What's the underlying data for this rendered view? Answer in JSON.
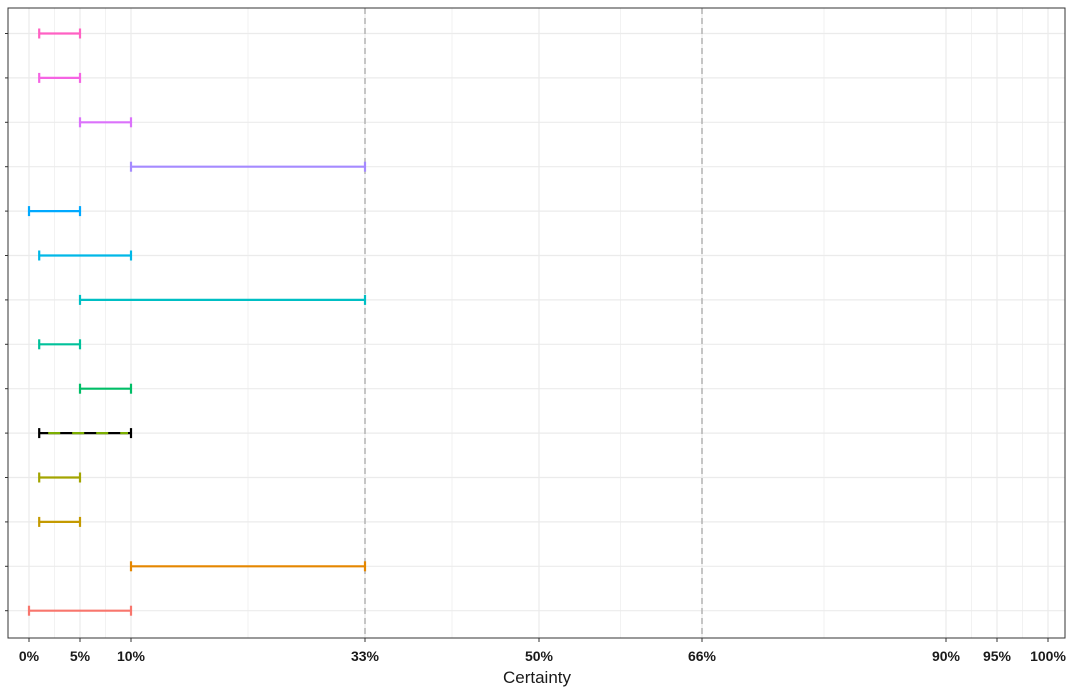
{
  "chart_data": {
    "type": "errorbar",
    "title": "",
    "xlabel": "Certainty",
    "ylabel": "",
    "xlim": [
      -1,
      101
    ],
    "x_ticks": [
      {
        "value": 0,
        "label": "0%"
      },
      {
        "value": 5,
        "label": "5%"
      },
      {
        "value": 10,
        "label": "10%"
      },
      {
        "value": 33,
        "label": "33%"
      },
      {
        "value": 50,
        "label": "50%"
      },
      {
        "value": 66,
        "label": "66%"
      },
      {
        "value": 90,
        "label": "90%"
      },
      {
        "value": 95,
        "label": "95%"
      },
      {
        "value": 100,
        "label": "100%"
      }
    ],
    "minor_gridlines": [
      2.5,
      7.5,
      21.5,
      41.5,
      58,
      78,
      92.5,
      97.5
    ],
    "reference_lines": [
      {
        "value": 33,
        "style": "dashed",
        "color": "#b3b3b3"
      },
      {
        "value": 66,
        "style": "dashed",
        "color": "#b3b3b3"
      }
    ],
    "grid": true,
    "legend": "none",
    "rows": [
      {
        "low": 1,
        "high": 5,
        "color": "#FF61C3"
      },
      {
        "low": 1,
        "high": 5,
        "color": "#F564E3"
      },
      {
        "low": 5,
        "high": 10,
        "color": "#DB72FB"
      },
      {
        "low": 10,
        "high": 33,
        "color": "#A58AFF"
      },
      {
        "low": 0,
        "high": 5,
        "color": "#00A9FF"
      },
      {
        "low": 1,
        "high": 10,
        "color": "#00B8E7"
      },
      {
        "low": 5,
        "high": 33,
        "color": "#00BFC4"
      },
      {
        "low": 1,
        "high": 5,
        "color": "#00C19A"
      },
      {
        "low": 5,
        "high": 10,
        "color": "#00BE67"
      },
      {
        "low": 1,
        "high": 10,
        "color": "#000000",
        "dashed_color": "#7CAE00"
      },
      {
        "low": 1,
        "high": 5,
        "color": "#A3A500"
      },
      {
        "low": 1,
        "high": 5,
        "color": "#C49A00"
      },
      {
        "low": 10,
        "high": 33,
        "color": "#E58700"
      },
      {
        "low": 0,
        "high": 10,
        "color": "#F8766D"
      }
    ]
  }
}
